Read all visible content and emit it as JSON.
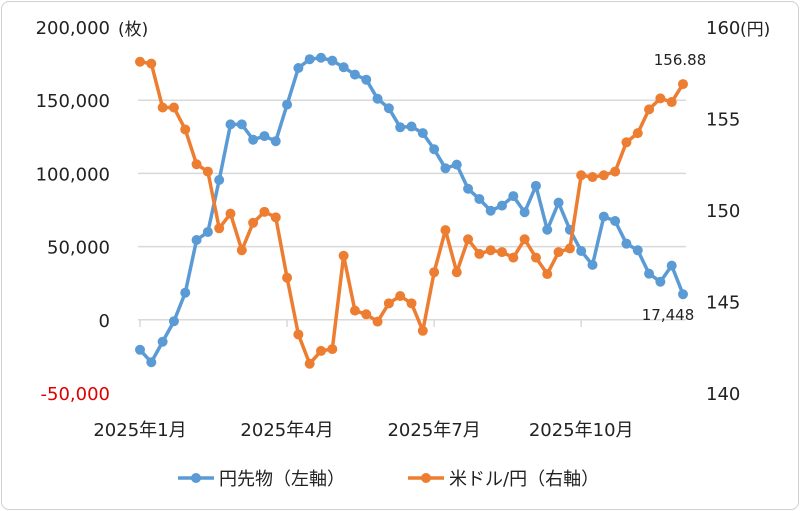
{
  "chart_data": {
    "type": "line",
    "title": "",
    "dual_axis": true,
    "grid": true,
    "legend_position": "bottom",
    "left_axis": {
      "unit": "(枚)",
      "ylim": [
        -50000,
        200000
      ],
      "ticks": [
        200000,
        150000,
        100000,
        50000,
        0,
        -50000
      ],
      "tick_labels": [
        "200,000",
        "150,000",
        "100,000",
        "50,000",
        "0",
        "-50,000"
      ],
      "negative_color": "#e00000"
    },
    "right_axis": {
      "unit": "(円)",
      "ylim": [
        140,
        160
      ],
      "ticks": [
        160,
        155,
        150,
        145,
        140
      ],
      "tick_labels": [
        "160",
        "155",
        "150",
        "145",
        "140"
      ]
    },
    "x_tick_labels": [
      "2025年1月",
      "2025年4月",
      "2025年7月",
      "2025年10月"
    ],
    "frequency": "weekly",
    "series": [
      {
        "name": "円先物（左軸）",
        "axis": "left",
        "color": "#5b9bd5",
        "values": [
          -20500,
          -29000,
          -15000,
          -1000,
          18500,
          54500,
          60000,
          95500,
          133500,
          133500,
          123000,
          125500,
          122000,
          147000,
          172000,
          178000,
          179000,
          177000,
          172500,
          167500,
          164000,
          151000,
          144500,
          131500,
          132000,
          127500,
          116500,
          103500,
          106000,
          89500,
          82500,
          74500,
          78000,
          84500,
          73500,
          91500,
          61500,
          80000,
          61500,
          47000,
          37500,
          70500,
          67500,
          52000,
          47500,
          31500,
          26000,
          37000,
          17448
        ],
        "last_label": "17,448"
      },
      {
        "name": "米ドル/円（右軸）",
        "axis": "right",
        "color": "#ed7d31",
        "values": [
          158.1,
          158.0,
          155.6,
          155.6,
          154.4,
          152.5,
          152.1,
          149.0,
          149.8,
          147.8,
          149.3,
          149.9,
          149.6,
          146.3,
          143.2,
          141.6,
          142.3,
          142.4,
          147.5,
          144.5,
          144.3,
          143.9,
          144.9,
          145.3,
          144.9,
          143.4,
          146.6,
          148.9,
          146.6,
          148.4,
          147.6,
          147.8,
          147.7,
          147.4,
          148.4,
          147.4,
          146.5,
          147.7,
          147.9,
          151.9,
          151.8,
          151.9,
          152.1,
          153.7,
          154.2,
          155.5,
          156.1,
          155.9,
          156.88
        ],
        "last_label": "156.88"
      }
    ]
  }
}
